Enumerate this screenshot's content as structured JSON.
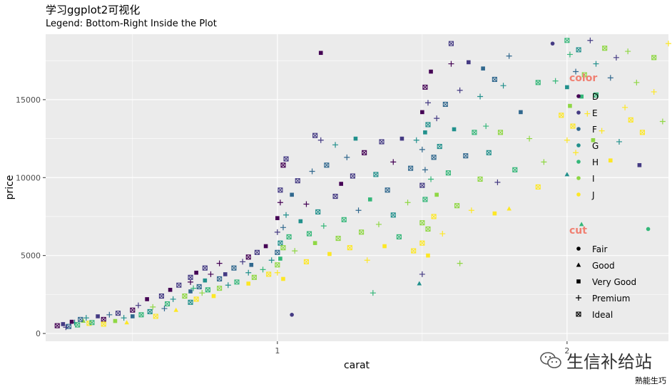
{
  "title": "学习ggplot2可视化",
  "subtitle": "Legend: Bottom-Right Inside the Plot",
  "watermark": "生信补给站",
  "footer": "熟能生巧",
  "colors": {
    "panel_bg": "#ebebeb",
    "grid": "#ffffff",
    "legend_title": "#f08072",
    "D": "#440154",
    "E": "#443a83",
    "F": "#31688e",
    "G": "#21908c",
    "H": "#35b779",
    "I": "#8fd744",
    "J": "#fde725"
  },
  "chart_data": {
    "type": "scatter",
    "xlabel": "carat",
    "ylabel": "price",
    "xlim": [
      0.2,
      2.35
    ],
    "ylim": [
      -500,
      19200
    ],
    "x_ticks": [
      1,
      2
    ],
    "x_tick_labels": [
      "1",
      "2"
    ],
    "y_ticks": [
      0,
      5000,
      10000,
      15000
    ],
    "y_tick_labels": [
      "0",
      "5000",
      "10000",
      "15000"
    ],
    "grid": true,
    "legend_position": "bottom-right inside",
    "color_legend": {
      "title": "color",
      "levels": [
        "D",
        "E",
        "F",
        "G",
        "H",
        "I",
        "J"
      ]
    },
    "shape_legend": {
      "title": "cut",
      "levels": [
        "Fair",
        "Good",
        "Very Good",
        "Premium",
        "Ideal"
      ],
      "shapes": [
        "circle",
        "triangle",
        "square",
        "plus",
        "boxed-x"
      ]
    },
    "points": [
      [
        0.24,
        500,
        "D",
        "Ideal"
      ],
      [
        0.26,
        600,
        "E",
        "Very Good"
      ],
      [
        0.28,
        450,
        "F",
        "Ideal"
      ],
      [
        0.3,
        700,
        "G",
        "Premium"
      ],
      [
        0.31,
        550,
        "H",
        "Ideal"
      ],
      [
        0.33,
        800,
        "I",
        "Good"
      ],
      [
        0.35,
        650,
        "J",
        "Ideal"
      ],
      [
        0.27,
        400,
        "E",
        "Premium"
      ],
      [
        0.29,
        750,
        "D",
        "Very Good"
      ],
      [
        0.32,
        900,
        "F",
        "Ideal"
      ],
      [
        0.34,
        1000,
        "G",
        "Premium"
      ],
      [
        0.36,
        700,
        "H",
        "Ideal"
      ],
      [
        0.38,
        1100,
        "E",
        "Very Good"
      ],
      [
        0.4,
        900,
        "D",
        "Ideal"
      ],
      [
        0.42,
        1200,
        "F",
        "Premium"
      ],
      [
        0.4,
        600,
        "J",
        "Ideal"
      ],
      [
        0.44,
        800,
        "I",
        "Very Good"
      ],
      [
        0.45,
        1300,
        "E",
        "Ideal"
      ],
      [
        0.47,
        1000,
        "G",
        "Premium"
      ],
      [
        0.48,
        700,
        "J",
        "Good"
      ],
      [
        0.5,
        1500,
        "D",
        "Ideal"
      ],
      [
        0.5,
        1100,
        "F",
        "Very Good"
      ],
      [
        0.52,
        1800,
        "E",
        "Premium"
      ],
      [
        0.53,
        1200,
        "H",
        "Ideal"
      ],
      [
        0.55,
        2200,
        "D",
        "Very Good"
      ],
      [
        0.56,
        1400,
        "G",
        "Ideal"
      ],
      [
        0.57,
        1700,
        "I",
        "Premium"
      ],
      [
        0.58,
        1100,
        "J",
        "Ideal"
      ],
      [
        0.6,
        2400,
        "E",
        "Ideal"
      ],
      [
        0.61,
        1600,
        "F",
        "Premium"
      ],
      [
        0.63,
        2800,
        "D",
        "Very Good"
      ],
      [
        0.62,
        1900,
        "H",
        "Ideal"
      ],
      [
        0.64,
        2200,
        "G",
        "Premium"
      ],
      [
        0.65,
        1500,
        "J",
        "Good"
      ],
      [
        0.66,
        3100,
        "E",
        "Ideal"
      ],
      [
        0.68,
        2400,
        "I",
        "Ideal"
      ],
      [
        0.7,
        3300,
        "D",
        "Premium"
      ],
      [
        0.7,
        2700,
        "F",
        "Very Good"
      ],
      [
        0.7,
        2000,
        "G",
        "Ideal"
      ],
      [
        0.7,
        3600,
        "E",
        "Ideal"
      ],
      [
        0.71,
        2900,
        "H",
        "Premium"
      ],
      [
        0.72,
        3900,
        "D",
        "Very Good"
      ],
      [
        0.72,
        2200,
        "J",
        "Ideal"
      ],
      [
        0.73,
        3000,
        "F",
        "Ideal"
      ],
      [
        0.74,
        2600,
        "I",
        "Premium"
      ],
      [
        0.75,
        3400,
        "G",
        "Very Good"
      ],
      [
        0.75,
        4200,
        "E",
        "Ideal"
      ],
      [
        0.76,
        2800,
        "H",
        "Ideal"
      ],
      [
        0.77,
        3800,
        "D",
        "Premium"
      ],
      [
        0.78,
        2400,
        "J",
        "Very Good"
      ],
      [
        0.8,
        3500,
        "F",
        "Ideal"
      ],
      [
        0.8,
        4500,
        "D",
        "Premium"
      ],
      [
        0.8,
        2900,
        "I",
        "Ideal"
      ],
      [
        0.82,
        3800,
        "E",
        "Very Good"
      ],
      [
        0.83,
        3100,
        "G",
        "Premium"
      ],
      [
        0.85,
        4200,
        "F",
        "Ideal"
      ],
      [
        0.86,
        3300,
        "H",
        "Ideal"
      ],
      [
        0.88,
        4600,
        "E",
        "Premium"
      ],
      [
        0.9,
        3200,
        "J",
        "Very Good"
      ],
      [
        0.9,
        4900,
        "D",
        "Ideal"
      ],
      [
        0.9,
        3900,
        "G",
        "Premium"
      ],
      [
        0.91,
        4400,
        "F",
        "Very Good"
      ],
      [
        0.92,
        3600,
        "I",
        "Ideal"
      ],
      [
        0.93,
        5200,
        "E",
        "Ideal"
      ],
      [
        0.95,
        4100,
        "H",
        "Premium"
      ],
      [
        0.96,
        5600,
        "D",
        "Very Good"
      ],
      [
        0.97,
        3800,
        "J",
        "Ideal"
      ],
      [
        0.98,
        4700,
        "G",
        "Premium"
      ],
      [
        1.0,
        5200,
        "F",
        "Ideal"
      ],
      [
        1.0,
        6500,
        "E",
        "Premium"
      ],
      [
        1.0,
        4400,
        "I",
        "Ideal"
      ],
      [
        1.0,
        7400,
        "D",
        "Very Good"
      ],
      [
        1.0,
        3900,
        "J",
        "Premium"
      ],
      [
        1.01,
        5800,
        "G",
        "Ideal"
      ],
      [
        1.01,
        8400,
        "D",
        "Premium"
      ],
      [
        1.01,
        4800,
        "H",
        "Very Good"
      ],
      [
        1.01,
        9200,
        "E",
        "Ideal"
      ],
      [
        1.02,
        6800,
        "F",
        "Premium"
      ],
      [
        1.02,
        10800,
        "D",
        "Ideal"
      ],
      [
        1.02,
        5500,
        "I",
        "Ideal"
      ],
      [
        1.02,
        3500,
        "J",
        "Very Good"
      ],
      [
        1.03,
        7600,
        "G",
        "Premium"
      ],
      [
        1.03,
        11200,
        "E",
        "Ideal"
      ],
      [
        1.04,
        6200,
        "H",
        "Ideal"
      ],
      [
        1.05,
        1200,
        "E",
        "Fair"
      ],
      [
        1.05,
        8900,
        "F",
        "Very Good"
      ],
      [
        1.06,
        5300,
        "I",
        "Premium"
      ],
      [
        1.07,
        9800,
        "E",
        "Ideal"
      ],
      [
        1.08,
        7200,
        "G",
        "Very Good"
      ],
      [
        1.1,
        4600,
        "J",
        "Ideal"
      ],
      [
        1.1,
        8300,
        "D",
        "Premium"
      ],
      [
        1.11,
        6400,
        "H",
        "Ideal"
      ],
      [
        1.12,
        10400,
        "F",
        "Premium"
      ],
      [
        1.13,
        5800,
        "I",
        "Very Good"
      ],
      [
        1.13,
        12700,
        "E",
        "Ideal"
      ],
      [
        1.14,
        7800,
        "G",
        "Ideal"
      ],
      [
        1.15,
        18000,
        "D",
        "Very Good"
      ],
      [
        1.15,
        12400,
        "E",
        "Premium"
      ],
      [
        1.16,
        6900,
        "H",
        "Premium"
      ],
      [
        1.17,
        10800,
        "F",
        "Ideal"
      ],
      [
        1.18,
        5100,
        "J",
        "Very Good"
      ],
      [
        1.2,
        8800,
        "E",
        "Ideal"
      ],
      [
        1.2,
        12100,
        "G",
        "Premium"
      ],
      [
        1.21,
        6100,
        "I",
        "Ideal"
      ],
      [
        1.22,
        9600,
        "D",
        "Very Good"
      ],
      [
        1.23,
        7300,
        "H",
        "Ideal"
      ],
      [
        1.24,
        11300,
        "F",
        "Premium"
      ],
      [
        1.25,
        5500,
        "J",
        "Ideal"
      ],
      [
        1.26,
        10100,
        "E",
        "Ideal"
      ],
      [
        1.27,
        12500,
        "G",
        "Very Good"
      ],
      [
        1.28,
        7900,
        "F",
        "Premium"
      ],
      [
        1.29,
        6500,
        "I",
        "Ideal"
      ],
      [
        1.3,
        11600,
        "D",
        "Ideal"
      ],
      [
        1.31,
        4700,
        "J",
        "Premium"
      ],
      [
        1.32,
        8600,
        "H",
        "Very Good"
      ],
      [
        1.33,
        2600,
        "H",
        "Premium"
      ],
      [
        1.34,
        10200,
        "G",
        "Ideal"
      ],
      [
        1.35,
        7000,
        "I",
        "Premium"
      ],
      [
        1.36,
        12300,
        "E",
        "Ideal"
      ],
      [
        1.37,
        5600,
        "J",
        "Very Good"
      ],
      [
        1.38,
        9200,
        "F",
        "Ideal"
      ],
      [
        1.4,
        11000,
        "D",
        "Premium"
      ],
      [
        1.4,
        7600,
        "G",
        "Ideal"
      ],
      [
        1.42,
        6200,
        "H",
        "Ideal"
      ],
      [
        1.43,
        12500,
        "E",
        "Very Good"
      ],
      [
        1.45,
        8400,
        "I",
        "Premium"
      ],
      [
        1.46,
        10600,
        "F",
        "Ideal"
      ],
      [
        1.47,
        5300,
        "J",
        "Ideal"
      ],
      [
        1.48,
        12400,
        "G",
        "Premium"
      ],
      [
        1.49,
        3200,
        "G",
        "Good"
      ],
      [
        1.5,
        9500,
        "E",
        "Ideal"
      ],
      [
        1.5,
        14200,
        "D",
        "Very Good"
      ],
      [
        1.5,
        7100,
        "I",
        "Ideal"
      ],
      [
        1.5,
        11800,
        "F",
        "Premium"
      ],
      [
        1.5,
        5800,
        "J",
        "Ideal"
      ],
      [
        1.5,
        3800,
        "E",
        "Premium"
      ],
      [
        1.51,
        15800,
        "D",
        "Ideal"
      ],
      [
        1.51,
        12900,
        "G",
        "Very Good"
      ],
      [
        1.51,
        8600,
        "H",
        "Ideal"
      ],
      [
        1.51,
        10500,
        "F",
        "Premium"
      ],
      [
        1.52,
        14800,
        "E",
        "Premium"
      ],
      [
        1.52,
        6700,
        "I",
        "Ideal"
      ],
      [
        1.52,
        13400,
        "G",
        "Ideal"
      ],
      [
        1.52,
        5000,
        "J",
        "Very Good"
      ],
      [
        1.53,
        9900,
        "H",
        "Premium"
      ],
      [
        1.53,
        16800,
        "D",
        "Very Good"
      ],
      [
        1.54,
        11300,
        "F",
        "Ideal"
      ],
      [
        1.54,
        7500,
        "J",
        "Ideal"
      ],
      [
        1.55,
        13800,
        "E",
        "Premium"
      ],
      [
        1.55,
        8900,
        "I",
        "Very Good"
      ],
      [
        1.56,
        12000,
        "G",
        "Ideal"
      ],
      [
        1.57,
        6400,
        "J",
        "Premium"
      ],
      [
        1.58,
        14700,
        "F",
        "Ideal"
      ],
      [
        1.59,
        10300,
        "H",
        "Ideal"
      ],
      [
        1.6,
        18600,
        "E",
        "Ideal"
      ],
      [
        1.6,
        17300,
        "D",
        "Premium"
      ],
      [
        1.61,
        13100,
        "G",
        "Very Good"
      ],
      [
        1.62,
        8200,
        "I",
        "Ideal"
      ],
      [
        1.63,
        15600,
        "E",
        "Premium"
      ],
      [
        1.63,
        4500,
        "I",
        "Premium"
      ],
      [
        1.65,
        11400,
        "F",
        "Ideal"
      ],
      [
        1.66,
        17400,
        "E",
        "Very Good"
      ],
      [
        1.67,
        7900,
        "J",
        "Premium"
      ],
      [
        1.68,
        12900,
        "H",
        "Ideal"
      ],
      [
        1.7,
        15200,
        "G",
        "Premium"
      ],
      [
        1.7,
        9900,
        "I",
        "Ideal"
      ],
      [
        1.71,
        17000,
        "F",
        "Very Good"
      ],
      [
        1.72,
        13300,
        "H",
        "Premium"
      ],
      [
        1.73,
        11600,
        "G",
        "Ideal"
      ],
      [
        1.75,
        16300,
        "F",
        "Ideal"
      ],
      [
        1.75,
        7700,
        "J",
        "Very Good"
      ],
      [
        1.76,
        9700,
        "E",
        "Premium"
      ],
      [
        1.77,
        12900,
        "I",
        "Ideal"
      ],
      [
        1.78,
        15900,
        "G",
        "Premium"
      ],
      [
        1.8,
        17800,
        "F",
        "Premium"
      ],
      [
        1.8,
        8000,
        "J",
        "Good"
      ],
      [
        1.82,
        10500,
        "H",
        "Ideal"
      ],
      [
        1.84,
        14200,
        "F",
        "Very Good"
      ],
      [
        1.87,
        12500,
        "I",
        "Premium"
      ],
      [
        1.9,
        16100,
        "H",
        "Ideal"
      ],
      [
        1.9,
        9400,
        "J",
        "Ideal"
      ],
      [
        1.92,
        11000,
        "I",
        "Premium"
      ],
      [
        1.95,
        18600,
        "E",
        "Fair"
      ],
      [
        1.96,
        16200,
        "H",
        "Premium"
      ],
      [
        1.98,
        14000,
        "J",
        "Ideal"
      ],
      [
        2.0,
        18800,
        "H",
        "Ideal"
      ],
      [
        2.0,
        15800,
        "G",
        "Very Good"
      ],
      [
        2.0,
        12400,
        "J",
        "Premium"
      ],
      [
        2.0,
        10200,
        "G",
        "Good"
      ],
      [
        2.01,
        17900,
        "H",
        "Premium"
      ],
      [
        2.01,
        14600,
        "I",
        "Very Good"
      ],
      [
        2.02,
        13300,
        "J",
        "Ideal"
      ],
      [
        2.03,
        16800,
        "F",
        "Premium"
      ],
      [
        2.03,
        11600,
        "J",
        "Premium"
      ],
      [
        2.04,
        18200,
        "G",
        "Ideal"
      ],
      [
        2.05,
        15200,
        "H",
        "Very Good"
      ],
      [
        2.05,
        7000,
        "H",
        "Good"
      ],
      [
        2.06,
        16600,
        "I",
        "Ideal"
      ],
      [
        2.07,
        14100,
        "J",
        "Premium"
      ],
      [
        2.08,
        18800,
        "E",
        "Premium"
      ],
      [
        2.09,
        12400,
        "I",
        "Very Good"
      ],
      [
        2.1,
        17300,
        "G",
        "Premium"
      ],
      [
        2.1,
        15300,
        "H",
        "Ideal"
      ],
      [
        2.12,
        13000,
        "J",
        "Premium"
      ],
      [
        2.13,
        18300,
        "I",
        "Ideal"
      ],
      [
        2.15,
        16400,
        "F",
        "Premium"
      ],
      [
        2.15,
        11100,
        "J",
        "Very Good"
      ],
      [
        2.17,
        17700,
        "E",
        "Premium"
      ],
      [
        2.18,
        12300,
        "G",
        "Premium"
      ],
      [
        2.2,
        14500,
        "J",
        "Premium"
      ],
      [
        2.21,
        18100,
        "I",
        "Premium"
      ],
      [
        2.22,
        13700,
        "J",
        "Ideal"
      ],
      [
        2.24,
        16100,
        "I",
        "Premium"
      ],
      [
        2.25,
        10800,
        "E",
        "Very Good"
      ],
      [
        2.26,
        12900,
        "J",
        "Ideal"
      ],
      [
        2.28,
        6700,
        "H",
        "Fair"
      ],
      [
        2.3,
        17700,
        "I",
        "Ideal"
      ],
      [
        2.3,
        15500,
        "J",
        "Premium"
      ],
      [
        2.33,
        13600,
        "I",
        "Premium"
      ],
      [
        2.35,
        18600,
        "J",
        "Premium"
      ]
    ]
  }
}
